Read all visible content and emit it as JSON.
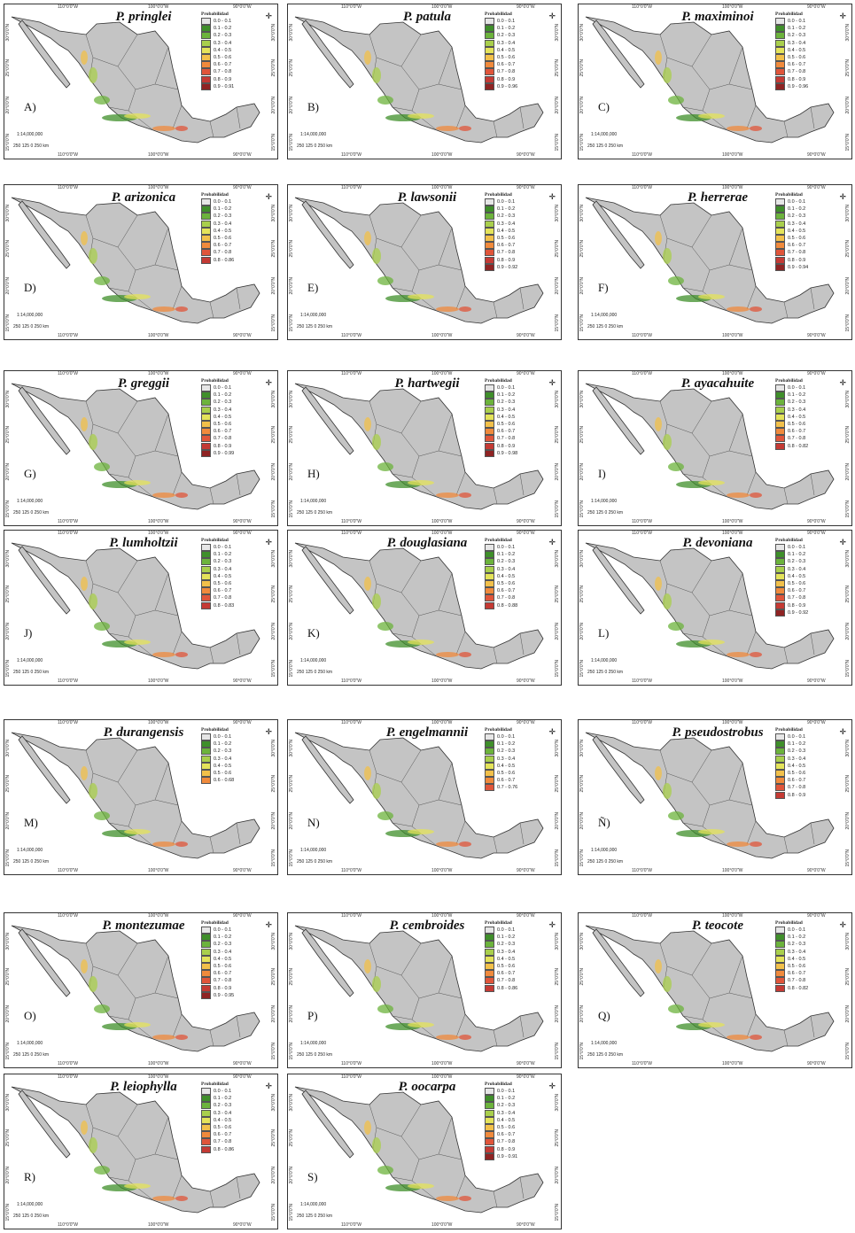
{
  "legend_title": "Probabilidad",
  "scale_label": "1:14,000,000",
  "scale_ticks": "250 125  0      250 km",
  "lon_labels": [
    "110°0'0\"W",
    "100°0'0\"W",
    "90°0'0\"W"
  ],
  "lat_labels": [
    "30°0'0\"N",
    "25°0'0\"N",
    "20°0'0\"N",
    "15°0'0\"N"
  ],
  "legend_colors": [
    "#e6e6e6",
    "#3f8f2a",
    "#6cb33c",
    "#a9cf4c",
    "#e4e35a",
    "#f2c04a",
    "#f08a3c",
    "#e0553a",
    "#c43a34",
    "#8f2323"
  ],
  "panels": [
    {
      "letter": "A)",
      "species": "P. pringlei",
      "legend": [
        "0.0 - 0.1",
        "0.1 - 0.2",
        "0.2 - 0.3",
        "0.3 - 0.4",
        "0.4 - 0.5",
        "0.5 - 0.6",
        "0.6 - 0.7",
        "0.7 - 0.8",
        "0.8 - 0.9",
        "0.9 - 0.91"
      ]
    },
    {
      "letter": "B)",
      "species": "P. patula",
      "legend": [
        "0.0 - 0.1",
        "0.1 - 0.2",
        "0.2 - 0.3",
        "0.3 - 0.4",
        "0.4 - 0.5",
        "0.5 - 0.6",
        "0.6 - 0.7",
        "0.7 - 0.8",
        "0.8 - 0.9",
        "0.9 - 0.96"
      ]
    },
    {
      "letter": "C)",
      "species": "P. maximinoi",
      "legend": [
        "0.0 - 0.1",
        "0.1 - 0.2",
        "0.2 - 0.3",
        "0.3 - 0.4",
        "0.4 - 0.5",
        "0.5 - 0.6",
        "0.6 - 0.7",
        "0.7 - 0.8",
        "0.8 - 0.9",
        "0.9 - 0.96"
      ]
    },
    {
      "letter": "D)",
      "species": "P. arizonica",
      "legend": [
        "0.0 - 0.1",
        "0.1 - 0.2",
        "0.2 - 0.3",
        "0.3 - 0.4",
        "0.4 - 0.5",
        "0.5 - 0.6",
        "0.6 - 0.7",
        "0.7 - 0.8",
        "0.8 - 0.86"
      ]
    },
    {
      "letter": "E)",
      "species": "P. lawsonii",
      "legend": [
        "0.0 - 0.1",
        "0.1 - 0.2",
        "0.2 - 0.3",
        "0.3 - 0.4",
        "0.4 - 0.5",
        "0.5 - 0.6",
        "0.6 - 0.7",
        "0.7 - 0.8",
        "0.8 - 0.9",
        "0.9 - 0.92"
      ]
    },
    {
      "letter": "F)",
      "species": "P. herrerae",
      "legend": [
        "0.0 - 0.1",
        "0.1 - 0.2",
        "0.2 - 0.3",
        "0.3 - 0.4",
        "0.4 - 0.5",
        "0.5 - 0.6",
        "0.6 - 0.7",
        "0.7 - 0.8",
        "0.8 - 0.9",
        "0.9 - 0.94"
      ]
    },
    {
      "letter": "G)",
      "species": "P. greggii",
      "legend": [
        "0.0 - 0.1",
        "0.1 - 0.2",
        "0.2 - 0.3",
        "0.3 - 0.4",
        "0.4 - 0.5",
        "0.5 - 0.6",
        "0.6 - 0.7",
        "0.7 - 0.8",
        "0.8 - 0.9",
        "0.9 - 0.99"
      ]
    },
    {
      "letter": "H)",
      "species": "P. hartwegii",
      "legend": [
        "0.0 - 0.1",
        "0.1 - 0.2",
        "0.2 - 0.3",
        "0.3 - 0.4",
        "0.4 - 0.5",
        "0.5 - 0.6",
        "0.6 - 0.7",
        "0.7 - 0.8",
        "0.8 - 0.9",
        "0.9 - 0.98"
      ]
    },
    {
      "letter": "I)",
      "species": "P. ayacahuite",
      "legend": [
        "0.0 - 0.1",
        "0.1 - 0.2",
        "0.2 - 0.3",
        "0.3 - 0.4",
        "0.4 - 0.5",
        "0.5 - 0.6",
        "0.6 - 0.7",
        "0.7 - 0.8",
        "0.8 - 0.82"
      ]
    },
    {
      "letter": "J)",
      "species": "P. lumholtzii",
      "legend": [
        "0.0 - 0.1",
        "0.1 - 0.2",
        "0.2 - 0.3",
        "0.3 - 0.4",
        "0.4 - 0.5",
        "0.5 - 0.6",
        "0.6 - 0.7",
        "0.7 - 0.8",
        "0.8 - 0.83"
      ]
    },
    {
      "letter": "K)",
      "species": "P. douglasiana",
      "legend": [
        "0.0 - 0.1",
        "0.1 - 0.2",
        "0.2 - 0.3",
        "0.3 - 0.4",
        "0.4 - 0.5",
        "0.5 - 0.6",
        "0.6 - 0.7",
        "0.7 - 0.8",
        "0.8 - 0.88"
      ]
    },
    {
      "letter": "L)",
      "species": "P. devoniana",
      "legend": [
        "0.0 - 0.1",
        "0.1 - 0.2",
        "0.2 - 0.3",
        "0.3 - 0.4",
        "0.4 - 0.5",
        "0.5 - 0.6",
        "0.6 - 0.7",
        "0.7 - 0.8",
        "0.8 - 0.9",
        "0.9 - 0.92"
      ]
    },
    {
      "letter": "M)",
      "species": "P. durangensis",
      "legend": [
        "0.0 - 0.1",
        "0.1 - 0.2",
        "0.2 - 0.3",
        "0.3 - 0.4",
        "0.4 - 0.5",
        "0.5 - 0.6",
        "0.6 - 0.68"
      ]
    },
    {
      "letter": "N)",
      "species": "P. engelmannii",
      "legend": [
        "0.0 - 0.1",
        "0.1 - 0.2",
        "0.2 - 0.3",
        "0.3 - 0.4",
        "0.4 - 0.5",
        "0.5 - 0.6",
        "0.6 - 0.7",
        "0.7 - 0.76"
      ]
    },
    {
      "letter": "Ñ)",
      "species": "P. pseudostrobus",
      "legend": [
        "0.0 - 0.1",
        "0.1 - 0.2",
        "0.2 - 0.3",
        "0.3 - 0.4",
        "0.4 - 0.5",
        "0.5 - 0.6",
        "0.6 - 0.7",
        "0.7 - 0.8",
        "0.8 - 0.9"
      ]
    },
    {
      "letter": "O)",
      "species": "P. montezumae",
      "legend": [
        "0.0 - 0.1",
        "0.1 - 0.2",
        "0.2 - 0.3",
        "0.3 - 0.4",
        "0.4 - 0.5",
        "0.5 - 0.6",
        "0.6 - 0.7",
        "0.7 - 0.8",
        "0.8 - 0.9",
        "0.9 - 0.95"
      ]
    },
    {
      "letter": "P)",
      "species": "P. cembroides",
      "legend": [
        "0.0 - 0.1",
        "0.1 - 0.2",
        "0.2 - 0.3",
        "0.3 - 0.4",
        "0.4 - 0.5",
        "0.5 - 0.6",
        "0.6 - 0.7",
        "0.7 - 0.8",
        "0.8 - 0.86"
      ]
    },
    {
      "letter": "Q)",
      "species": "P. teocote",
      "legend": [
        "0.0 - 0.1",
        "0.1 - 0.2",
        "0.2 - 0.3",
        "0.3 - 0.4",
        "0.4 - 0.5",
        "0.5 - 0.6",
        "0.6 - 0.7",
        "0.7 - 0.8",
        "0.8 - 0.82"
      ]
    },
    {
      "letter": "R)",
      "species": "P. leiophylla",
      "legend": [
        "0.0 - 0.1",
        "0.1 - 0.2",
        "0.2 - 0.3",
        "0.3 - 0.4",
        "0.4 - 0.5",
        "0.5 - 0.6",
        "0.6 - 0.7",
        "0.7 - 0.8",
        "0.8 - 0.86"
      ]
    },
    {
      "letter": "S)",
      "species": "P. oocarpa",
      "legend": [
        "0.0 - 0.1",
        "0.1 - 0.2",
        "0.2 - 0.3",
        "0.3 - 0.4",
        "0.4 - 0.5",
        "0.5 - 0.6",
        "0.6 - 0.7",
        "0.7 - 0.8",
        "0.8 - 0.9",
        "0.9 - 0.91"
      ]
    }
  ]
}
